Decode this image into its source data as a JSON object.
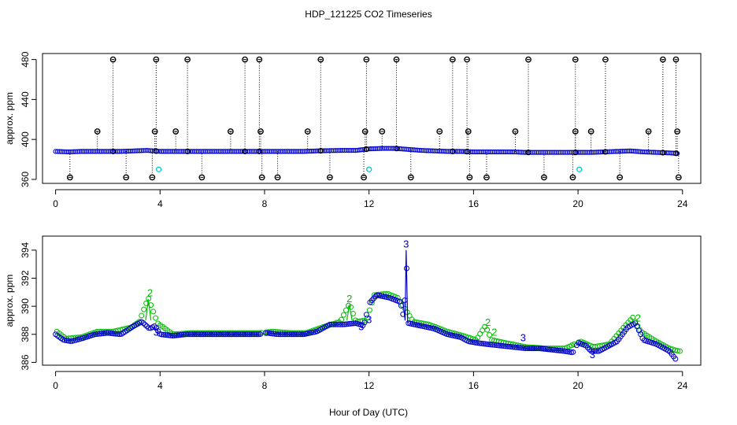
{
  "title": "HDP_121225  CO2 Timeseries",
  "xlabel": "Hour of Day (UTC)",
  "colors": {
    "raw": "#000000",
    "series_a": "#0000cc",
    "series_b": "#00bb00",
    "flag": "#00cccc"
  },
  "chart_data": [
    {
      "type": "scatter",
      "panel": "top",
      "ylabel": "approx. ppm",
      "xlim": [
        -0.5,
        24.7
      ],
      "ylim": [
        356,
        486
      ],
      "xticks": [
        0,
        4,
        8,
        12,
        16,
        20,
        24
      ],
      "yticks": [
        360,
        400,
        440,
        480
      ],
      "grid": false,
      "baseline_points": [
        [
          0,
          388
        ],
        [
          0.5,
          387.5
        ],
        [
          1,
          388
        ],
        [
          1.5,
          388
        ],
        [
          2,
          388
        ],
        [
          2.5,
          388
        ],
        [
          3,
          388.5
        ],
        [
          3.5,
          389
        ],
        [
          4,
          388
        ],
        [
          4.5,
          388
        ],
        [
          5,
          388
        ],
        [
          5.5,
          388
        ],
        [
          6,
          388
        ],
        [
          6.5,
          388
        ],
        [
          7,
          388
        ],
        [
          7.5,
          388
        ],
        [
          8,
          388
        ],
        [
          8.5,
          388
        ],
        [
          9,
          388
        ],
        [
          9.5,
          388
        ],
        [
          10,
          388.5
        ],
        [
          10.5,
          388.8
        ],
        [
          11,
          389
        ],
        [
          11.5,
          389
        ],
        [
          12,
          390.5
        ],
        [
          12.5,
          391
        ],
        [
          13,
          391
        ],
        [
          13.5,
          390
        ],
        [
          14,
          389
        ],
        [
          14.5,
          388.5
        ],
        [
          15,
          388
        ],
        [
          15.5,
          388
        ],
        [
          16,
          387.5
        ],
        [
          16.5,
          387.5
        ],
        [
          17,
          387.5
        ],
        [
          17.5,
          387.5
        ],
        [
          18,
          387
        ],
        [
          18.5,
          387
        ],
        [
          19,
          387
        ],
        [
          19.5,
          387
        ],
        [
          20,
          387
        ],
        [
          20.5,
          387
        ],
        [
          21,
          387.5
        ],
        [
          21.5,
          388
        ],
        [
          22,
          388.5
        ],
        [
          22.5,
          387.5
        ],
        [
          23,
          387
        ],
        [
          23.5,
          386.5
        ],
        [
          23.8,
          386
        ]
      ],
      "spikes_high": [
        2.2,
        3.85,
        5.05,
        7.25,
        7.8,
        10.15,
        11.9,
        13.05,
        15.2,
        15.75,
        18.1,
        19.9,
        21.05,
        23.25,
        23.75
      ],
      "spikes_mid": [
        1.6,
        3.8,
        4.6,
        6.7,
        7.85,
        9.65,
        11.85,
        12.5,
        14.7,
        15.8,
        17.6,
        19.9,
        20.5,
        22.7,
        23.8
      ],
      "spikes_low": [
        0.55,
        2.7,
        3.7,
        5.6,
        7.9,
        8.5,
        10.5,
        11.8,
        13.6,
        15.85,
        16.5,
        18.7,
        19.8,
        21.6,
        23.85
      ],
      "flag_points": [
        [
          3.95,
          370
        ],
        [
          12,
          370
        ],
        [
          20.05,
          370
        ]
      ]
    },
    {
      "type": "scatter",
      "panel": "bottom",
      "ylabel": "approx. ppm",
      "xlim": [
        -0.5,
        24.7
      ],
      "ylim": [
        385.8,
        395
      ],
      "xticks": [
        0,
        4,
        8,
        12,
        16,
        20,
        24
      ],
      "yticks": [
        386,
        388,
        390,
        392,
        394
      ],
      "grid": false,
      "marker_label": "3",
      "spike_label": "2",
      "series_blue": [
        [
          0,
          388
        ],
        [
          0.3,
          387.6
        ],
        [
          0.6,
          387.5
        ],
        [
          1,
          387.7
        ],
        [
          1.5,
          388
        ],
        [
          2,
          388.1
        ],
        [
          2.5,
          388
        ],
        [
          3,
          388.6
        ],
        [
          3.3,
          388.9
        ],
        [
          3.6,
          388.4
        ],
        [
          3.8,
          388.6
        ],
        [
          4,
          388
        ],
        [
          4.5,
          387.9
        ],
        [
          5,
          388
        ],
        [
          5.5,
          388
        ],
        [
          6,
          388
        ],
        [
          6.5,
          388
        ],
        [
          7,
          388
        ],
        [
          7.5,
          388
        ],
        [
          7.8,
          388
        ],
        [
          8.1,
          388.1
        ],
        [
          8.5,
          388
        ],
        [
          9,
          388
        ],
        [
          9.5,
          388
        ],
        [
          10,
          388.2
        ],
        [
          10.5,
          388.7
        ],
        [
          11,
          388.7
        ],
        [
          11.5,
          388.8
        ],
        [
          11.8,
          388.6
        ],
        [
          12,
          390.2
        ],
        [
          12.3,
          390.8
        ],
        [
          12.8,
          390.6
        ],
        [
          13.2,
          390.3
        ],
        [
          13.35,
          389
        ],
        [
          13.42,
          394
        ],
        [
          13.5,
          388.8
        ],
        [
          14,
          388.6
        ],
        [
          14.5,
          388.4
        ],
        [
          15,
          388
        ],
        [
          15.5,
          387.8
        ],
        [
          15.8,
          387.5
        ],
        [
          16.1,
          387.4
        ],
        [
          16.5,
          387.3
        ],
        [
          17,
          387.2
        ],
        [
          17.5,
          387.1
        ],
        [
          18,
          387
        ],
        [
          18.5,
          387
        ],
        [
          19,
          386.9
        ],
        [
          19.5,
          386.8
        ],
        [
          19.8,
          386.7
        ],
        [
          20,
          387.4
        ],
        [
          20.3,
          387.2
        ],
        [
          20.5,
          386.8
        ],
        [
          20.8,
          386.8
        ],
        [
          21,
          387
        ],
        [
          21.5,
          387.5
        ],
        [
          21.9,
          388.5
        ],
        [
          22.2,
          388.8
        ],
        [
          22.5,
          387.6
        ],
        [
          23,
          387.3
        ],
        [
          23.5,
          386.8
        ],
        [
          23.75,
          386.2
        ]
      ],
      "series_green": [
        [
          0.05,
          388.2
        ],
        [
          0.4,
          387.7
        ],
        [
          1,
          387.8
        ],
        [
          1.6,
          388.2
        ],
        [
          2.2,
          388.2
        ],
        [
          2.9,
          388.5
        ],
        [
          3.2,
          388.9
        ],
        [
          3.55,
          390.6
        ],
        [
          3.9,
          388.8
        ],
        [
          4.5,
          388
        ],
        [
          5.2,
          388.1
        ],
        [
          6,
          388.1
        ],
        [
          7,
          388.1
        ],
        [
          7.8,
          388.1
        ],
        [
          8.3,
          388.2
        ],
        [
          9,
          388.1
        ],
        [
          9.6,
          388.1
        ],
        [
          10.2,
          388.5
        ],
        [
          10.9,
          388.9
        ],
        [
          11.25,
          390.2
        ],
        [
          11.5,
          388.9
        ],
        [
          11.9,
          389
        ],
        [
          12.2,
          390.8
        ],
        [
          12.7,
          390.9
        ],
        [
          13.1,
          390.6
        ],
        [
          13.7,
          388.9
        ],
        [
          14.3,
          388.7
        ],
        [
          15,
          388.2
        ],
        [
          15.6,
          387.9
        ],
        [
          16.1,
          387.6
        ],
        [
          16.45,
          388.6
        ],
        [
          16.7,
          387.6
        ],
        [
          17.2,
          387.4
        ],
        [
          18,
          387.1
        ],
        [
          18.8,
          387
        ],
        [
          19.5,
          387
        ],
        [
          20.1,
          387.5
        ],
        [
          20.6,
          387.1
        ],
        [
          21.2,
          387.3
        ],
        [
          21.8,
          388.6
        ],
        [
          22.1,
          389.2
        ],
        [
          22.4,
          388.2
        ],
        [
          23,
          387.5
        ],
        [
          23.5,
          387
        ],
        [
          23.85,
          386.8
        ]
      ]
    }
  ]
}
